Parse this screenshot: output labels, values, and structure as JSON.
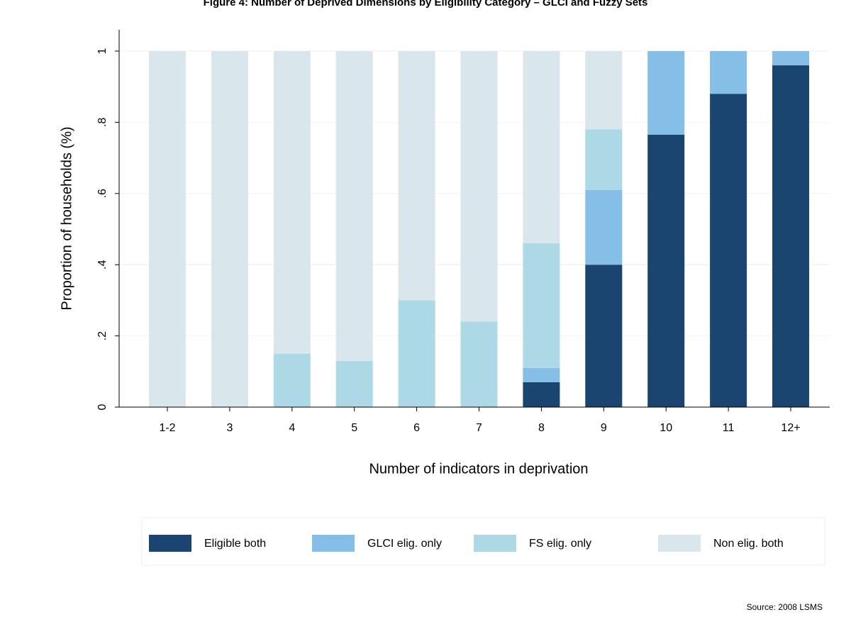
{
  "chart_data": {
    "type": "stacked_bar",
    "title": "Figure 4: Number of Deprived Dimensions by Eligibility Category – GLCI and Fuzzy Sets",
    "xlabel": "Number of indicators in deprivation",
    "ylabel": "Proportion of households (%)",
    "source": "Source: 2008 LSMS",
    "categories": [
      "1-2",
      "3",
      "4",
      "5",
      "6",
      "7",
      "8",
      "9",
      "10",
      "11",
      "12+"
    ],
    "series": [
      {
        "name": "Eligible both",
        "color": "#1a4570",
        "values": [
          0,
          0,
          0,
          0,
          0,
          0,
          0.07,
          0.4,
          0.765,
          0.88,
          0.96
        ]
      },
      {
        "name": "GLCI elig. only",
        "color": "#85bfe8",
        "values": [
          0,
          0,
          0,
          0,
          0,
          0,
          0.04,
          0.21,
          0.235,
          0.12,
          0.04
        ]
      },
      {
        "name": "FS elig. only",
        "color": "#add8e6",
        "values": [
          0,
          0,
          0.15,
          0.13,
          0.3,
          0.24,
          0.35,
          0.17,
          0,
          0,
          0
        ]
      },
      {
        "name": "Non elig. both",
        "color": "#d9e6ec",
        "values": [
          1,
          1,
          0.85,
          0.87,
          0.7,
          0.76,
          0.54,
          0.22,
          0,
          0,
          0
        ]
      }
    ],
    "ylim": [
      0,
      1
    ],
    "yticks": [
      0,
      {
        "value": 0.2,
        "label": ".2"
      },
      {
        "value": 0.4,
        "label": ".4"
      },
      {
        "value": 0.6,
        "label": ".6"
      },
      {
        "value": 0.8,
        "label": ".8"
      },
      1
    ],
    "grid": true
  }
}
